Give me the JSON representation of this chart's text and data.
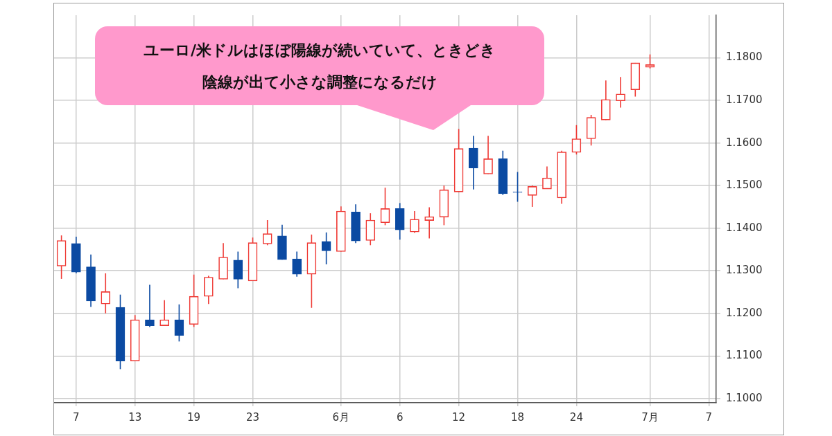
{
  "chart_data": {
    "type": "candlestick",
    "categories": [
      null,
      "7",
      null,
      null,
      null,
      "13",
      null,
      null,
      null,
      "19",
      null,
      null,
      null,
      "23",
      null,
      null,
      null,
      null,
      null,
      "6月",
      null,
      null,
      null,
      "6",
      null,
      null,
      null,
      "12",
      null,
      null,
      null,
      "18",
      null,
      null,
      null,
      "24",
      null,
      null,
      null,
      null,
      "7月",
      null,
      null,
      null,
      "7"
    ],
    "ohlc": [
      [
        1.1311,
        1.1383,
        1.1281,
        1.1371
      ],
      [
        1.1364,
        1.138,
        1.1294,
        1.1297
      ],
      [
        1.1309,
        1.1338,
        1.1215,
        1.1229
      ],
      [
        1.1222,
        1.1294,
        1.12,
        1.1251
      ],
      [
        1.1214,
        1.1244,
        1.1069,
        1.1088
      ],
      [
        1.1088,
        1.1196,
        1.1088,
        1.1185
      ],
      [
        1.1185,
        1.1267,
        1.1168,
        1.1171
      ],
      [
        1.1171,
        1.1231,
        1.1171,
        1.1185
      ],
      [
        1.1185,
        1.1221,
        1.1134,
        1.1148
      ],
      [
        1.1174,
        1.1291,
        1.1168,
        1.124
      ],
      [
        1.124,
        1.1288,
        1.1222,
        1.1285
      ],
      [
        1.128,
        1.1365,
        1.128,
        1.1332
      ],
      [
        1.1325,
        1.1345,
        1.1259,
        1.128
      ],
      [
        1.1276,
        1.1378,
        1.1276,
        1.1366
      ],
      [
        1.1363,
        1.1419,
        1.136,
        1.1387
      ],
      [
        1.1382,
        1.1408,
        1.1326,
        1.1326
      ],
      [
        1.1328,
        1.1345,
        1.1286,
        1.1292
      ],
      [
        1.1292,
        1.1385,
        1.1213,
        1.1366
      ],
      [
        1.1369,
        1.139,
        1.1315,
        1.1347
      ],
      [
        1.1345,
        1.1451,
        1.1345,
        1.144
      ],
      [
        1.1438,
        1.1456,
        1.1365,
        1.137
      ],
      [
        1.1371,
        1.1435,
        1.136,
        1.1419
      ],
      [
        1.1413,
        1.1495,
        1.1407,
        1.1446
      ],
      [
        1.1446,
        1.1459,
        1.1373,
        1.1396
      ],
      [
        1.1391,
        1.144,
        1.1389,
        1.1421
      ],
      [
        1.1418,
        1.1449,
        1.1376,
        1.1427
      ],
      [
        1.1426,
        1.15,
        1.1407,
        1.149
      ],
      [
        1.1485,
        1.1633,
        1.1485,
        1.1587
      ],
      [
        1.1588,
        1.1617,
        1.1491,
        1.1541
      ],
      [
        1.1527,
        1.1617,
        1.1527,
        1.1563
      ],
      [
        1.1563,
        1.1582,
        1.1478,
        1.1481
      ],
      [
        1.1485,
        1.1532,
        1.1462,
        1.1484
      ],
      [
        1.1477,
        1.15,
        1.145,
        1.1498
      ],
      [
        1.1492,
        1.1545,
        1.1492,
        1.1518
      ],
      [
        1.1471,
        1.1582,
        1.1457,
        1.1579
      ],
      [
        1.1578,
        1.1642,
        1.1573,
        1.161
      ],
      [
        1.161,
        1.1666,
        1.1594,
        1.166
      ],
      [
        1.1654,
        1.1747,
        1.1654,
        1.1702
      ],
      [
        1.1699,
        1.1755,
        1.1683,
        1.1715
      ],
      [
        1.1725,
        1.1788,
        1.1709,
        1.1788
      ],
      [
        1.1778,
        1.1808,
        1.1775,
        1.1784
      ],
      null,
      null,
      null,
      null
    ],
    "colors": [
      "#ef3a35",
      "#0b4aa2",
      "#0b4aa2",
      "#ef3a35",
      "#0b4aa2",
      "#ef3a35",
      "#0b4aa2",
      "#ef3a35",
      "#0b4aa2",
      "#ef3a35",
      "#ef3a35",
      "#ef3a35",
      "#0b4aa2",
      "#ef3a35",
      "#ef3a35",
      "#0b4aa2",
      "#0b4aa2",
      "#ef3a35",
      "#0b4aa2",
      "#ef3a35",
      "#0b4aa2",
      "#ef3a35",
      "#ef3a35",
      "#0b4aa2",
      "#ef3a35",
      "#ef3a35",
      "#ef3a35",
      "#ef3a35",
      "#0b4aa2",
      "#ef3a35",
      "#0b4aa2",
      "#0b4aa2",
      "#ef3a35",
      "#ef3a35",
      "#ef3a35",
      "#ef3a35",
      "#ef3a35",
      "#ef3a35",
      "#ef3a35",
      "#ef3a35",
      "#ef3a35",
      null,
      null,
      null,
      null
    ],
    "ylim": [
      1.099,
      1.19
    ],
    "yticks": [
      {
        "value": 1.1,
        "label": "1.1000"
      },
      {
        "value": 1.11,
        "label": "1.1100"
      },
      {
        "value": 1.12,
        "label": "1.1200"
      },
      {
        "value": 1.13,
        "label": "1.1300"
      },
      {
        "value": 1.14,
        "label": "1.1400"
      },
      {
        "value": 1.15,
        "label": "1.1500"
      },
      {
        "value": 1.16,
        "label": "1.1600"
      },
      {
        "value": 1.17,
        "label": "1.1700"
      },
      {
        "value": 1.18,
        "label": "1.1800"
      }
    ],
    "grid": true,
    "legend": false,
    "annotations": [
      "ユーロ/米ドルはほぼ陽線が続いていて、ときどき陰線が出て小さな調整になるだけ"
    ]
  }
}
